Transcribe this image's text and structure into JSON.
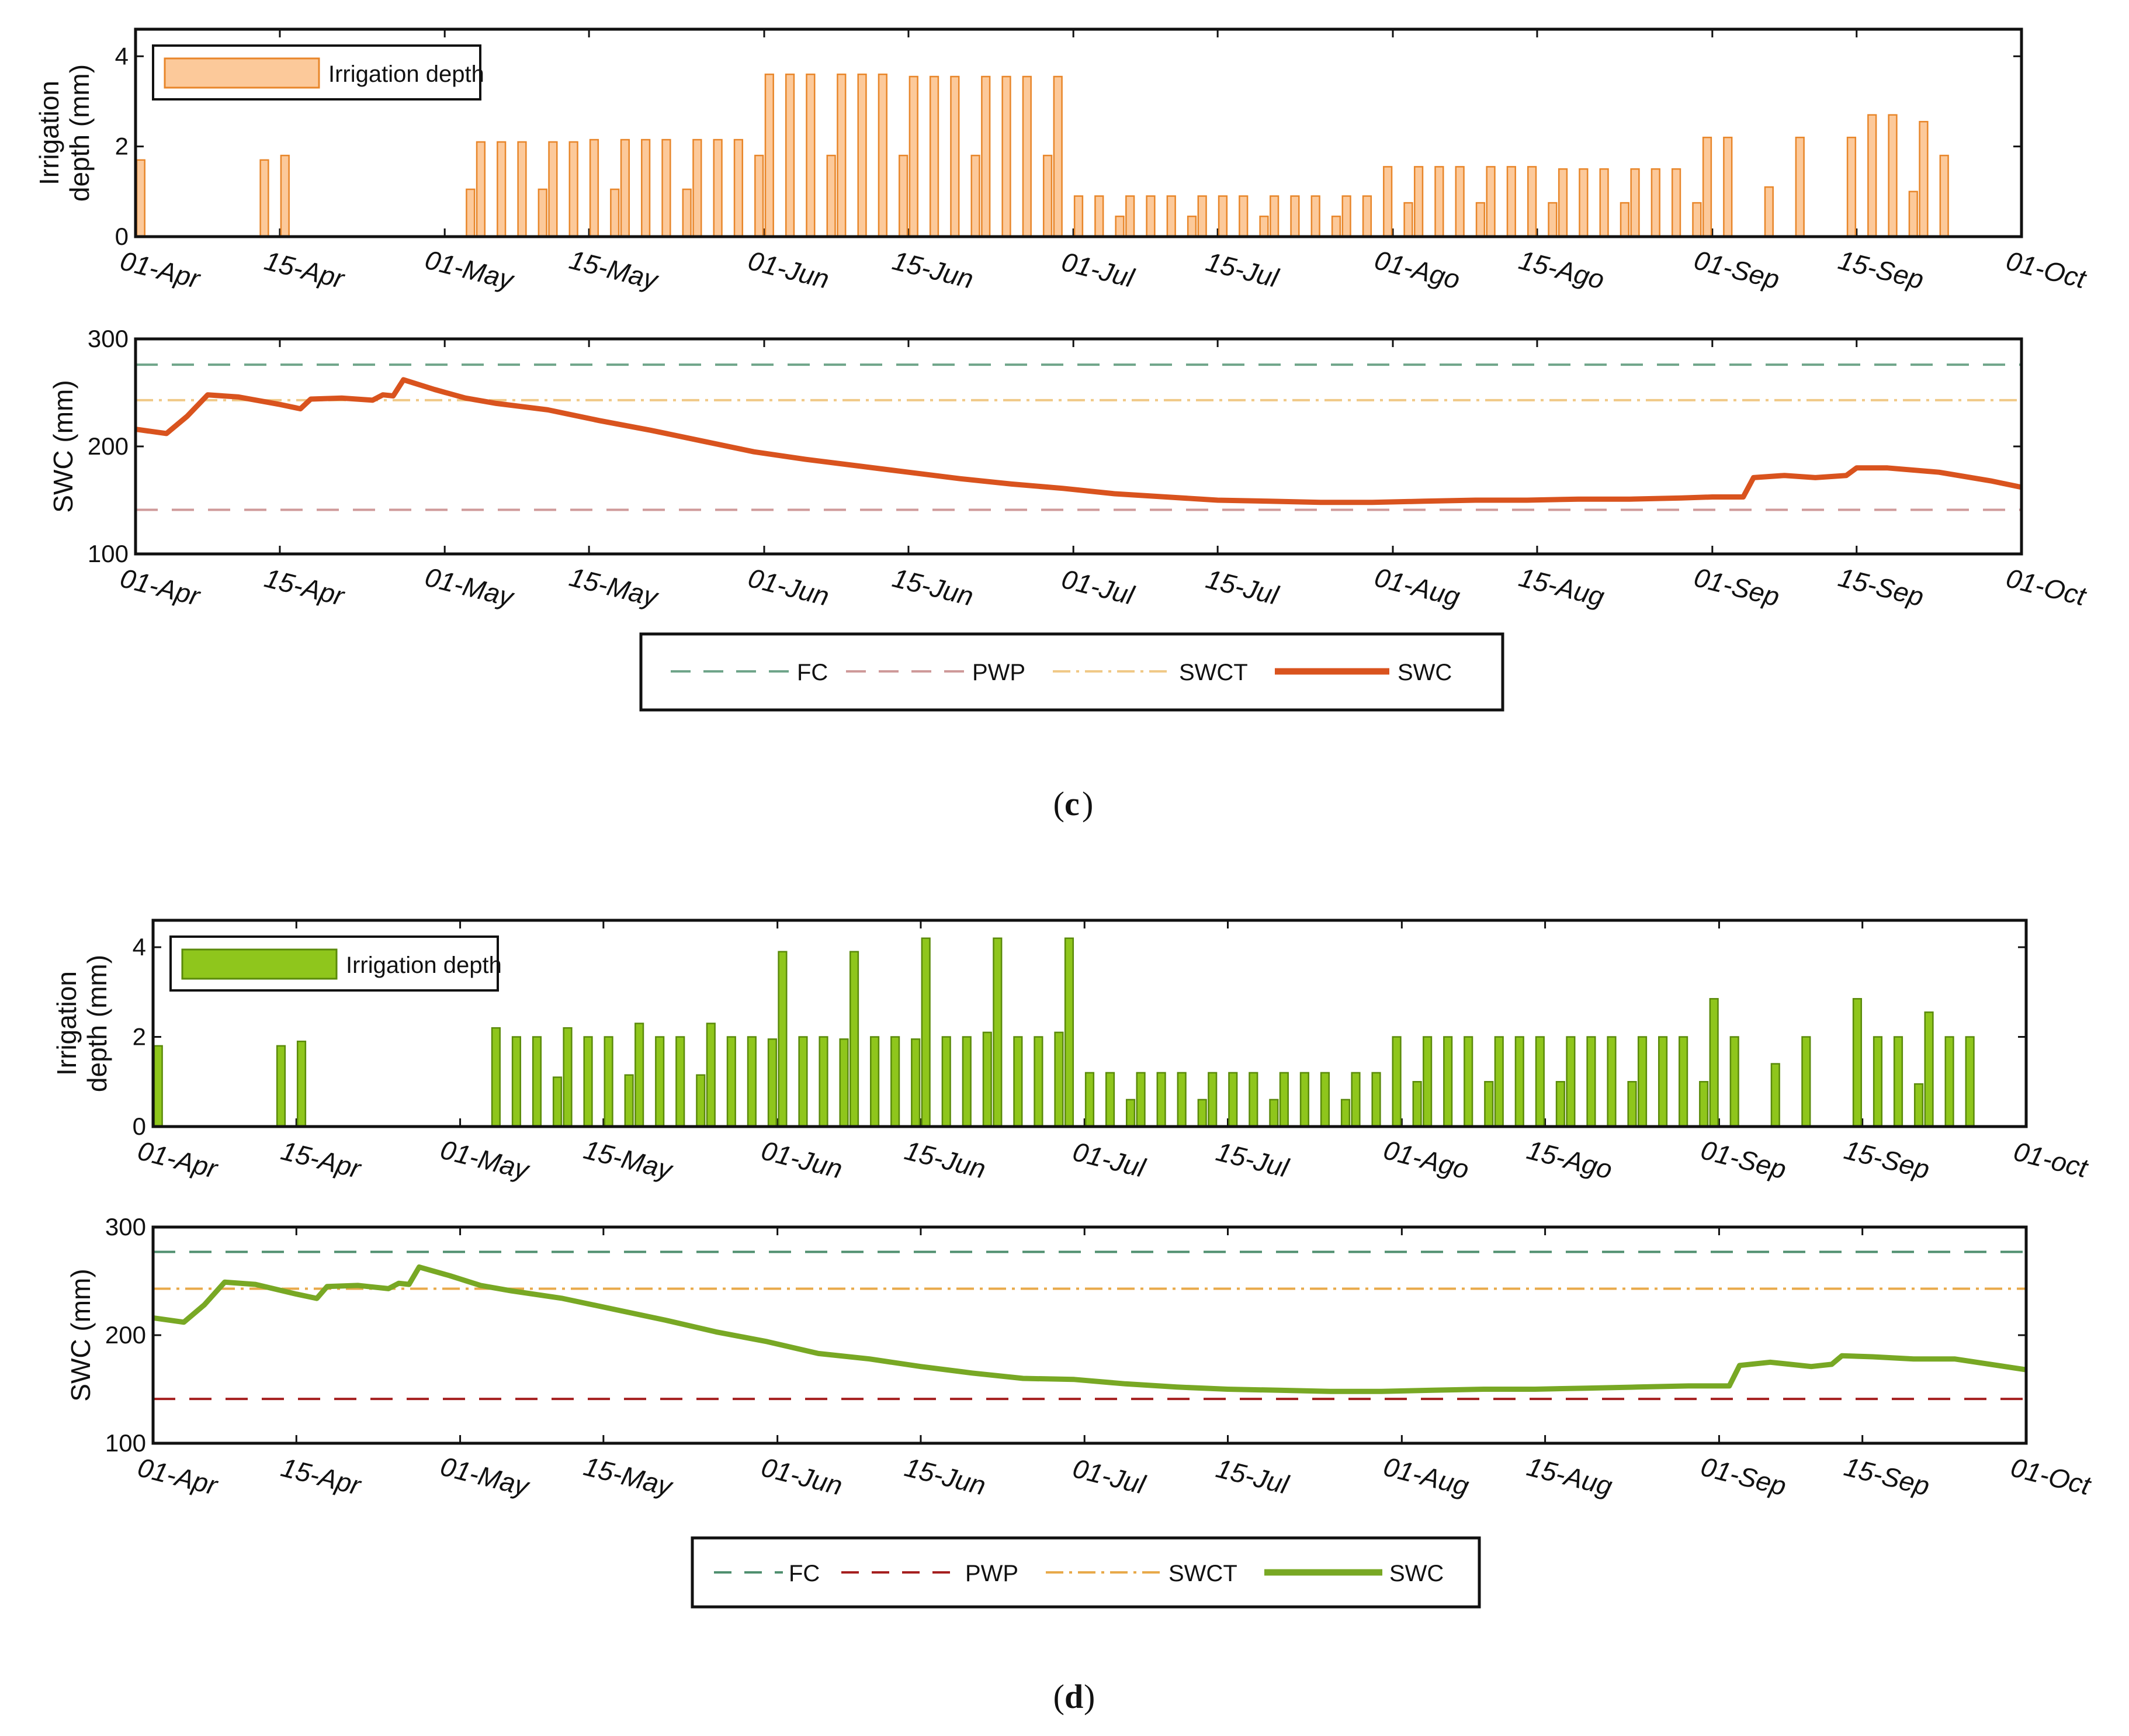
{
  "chart_data": [
    {
      "id": "c_irr",
      "type": "bar",
      "ylabel_lines": [
        "Irrigation",
        "depth (mm)"
      ],
      "yticks": [
        0,
        2,
        4
      ],
      "ylim": [
        0,
        4.6
      ],
      "xlim": [
        0,
        183
      ],
      "xtick_days": [
        0,
        14,
        30,
        44,
        61,
        75,
        91,
        105,
        122,
        136,
        153,
        167,
        183
      ],
      "xtick_labels": [
        "01-Apr",
        "15-Apr",
        "01-May",
        "15-May",
        "01-Jun",
        "15-Jun",
        "01-Jul",
        "15-Jul",
        "01-Ago",
        "15-Ago",
        "01-Sep",
        "15-Sep",
        "01-Oct"
      ],
      "legend": {
        "label": "Irrigation depth",
        "fill": "#fcc99a",
        "stroke": "#e8862a"
      },
      "bars": [
        [
          0.5,
          1.7
        ],
        [
          12.5,
          1.7
        ],
        [
          14.5,
          1.8
        ],
        [
          32.5,
          1.05
        ],
        [
          33.5,
          2.1
        ],
        [
          35.5,
          2.1
        ],
        [
          37.5,
          2.1
        ],
        [
          39.5,
          1.05
        ],
        [
          40.5,
          2.1
        ],
        [
          42.5,
          2.1
        ],
        [
          44.5,
          2.15
        ],
        [
          46.5,
          1.05
        ],
        [
          47.5,
          2.15
        ],
        [
          49.5,
          2.15
        ],
        [
          51.5,
          2.15
        ],
        [
          53.5,
          1.05
        ],
        [
          54.5,
          2.15
        ],
        [
          56.5,
          2.15
        ],
        [
          58.5,
          2.15
        ],
        [
          60.5,
          1.8
        ],
        [
          61.5,
          3.6
        ],
        [
          63.5,
          3.6
        ],
        [
          65.5,
          3.6
        ],
        [
          67.5,
          1.8
        ],
        [
          68.5,
          3.6
        ],
        [
          70.5,
          3.6
        ],
        [
          72.5,
          3.6
        ],
        [
          74.5,
          1.8
        ],
        [
          75.5,
          3.55
        ],
        [
          77.5,
          3.55
        ],
        [
          79.5,
          3.55
        ],
        [
          81.5,
          1.8
        ],
        [
          82.5,
          3.55
        ],
        [
          84.5,
          3.55
        ],
        [
          86.5,
          3.55
        ],
        [
          88.5,
          1.8
        ],
        [
          89.5,
          3.55
        ],
        [
          91.5,
          0.9
        ],
        [
          93.5,
          0.9
        ],
        [
          95.5,
          0.45
        ],
        [
          96.5,
          0.9
        ],
        [
          98.5,
          0.9
        ],
        [
          100.5,
          0.9
        ],
        [
          102.5,
          0.45
        ],
        [
          103.5,
          0.9
        ],
        [
          105.5,
          0.9
        ],
        [
          107.5,
          0.9
        ],
        [
          109.5,
          0.45
        ],
        [
          110.5,
          0.9
        ],
        [
          112.5,
          0.9
        ],
        [
          114.5,
          0.9
        ],
        [
          116.5,
          0.45
        ],
        [
          117.5,
          0.9
        ],
        [
          119.5,
          0.9
        ],
        [
          121.5,
          1.55
        ],
        [
          123.5,
          0.75
        ],
        [
          124.5,
          1.55
        ],
        [
          126.5,
          1.55
        ],
        [
          128.5,
          1.55
        ],
        [
          130.5,
          0.75
        ],
        [
          131.5,
          1.55
        ],
        [
          133.5,
          1.55
        ],
        [
          135.5,
          1.55
        ],
        [
          137.5,
          0.75
        ],
        [
          138.5,
          1.5
        ],
        [
          140.5,
          1.5
        ],
        [
          142.5,
          1.5
        ],
        [
          144.5,
          0.75
        ],
        [
          145.5,
          1.5
        ],
        [
          147.5,
          1.5
        ],
        [
          149.5,
          1.5
        ],
        [
          151.5,
          0.75
        ],
        [
          152.5,
          2.2
        ],
        [
          154.5,
          2.2
        ],
        [
          158.5,
          1.1
        ],
        [
          161.5,
          2.2
        ],
        [
          166.5,
          2.2
        ],
        [
          168.5,
          2.7
        ],
        [
          170.5,
          2.7
        ],
        [
          172.5,
          1.0
        ],
        [
          173.5,
          2.55
        ],
        [
          175.5,
          1.8
        ]
      ]
    },
    {
      "id": "c_swc",
      "type": "line",
      "ylabel": "SWC (mm)",
      "yticks": [
        100,
        200,
        300
      ],
      "ylim": [
        100,
        300
      ],
      "xlim": [
        0,
        183
      ],
      "xtick_days": [
        0,
        14,
        30,
        44,
        61,
        75,
        91,
        105,
        122,
        136,
        153,
        167,
        183
      ],
      "xtick_labels": [
        "01-Apr",
        "15-Apr",
        "01-May",
        "15-May",
        "01-Jun",
        "15-Jun",
        "01-Jul",
        "15-Jul",
        "01-Aug",
        "15-Aug",
        "01-Sep",
        "15-Sep",
        "01-Oct"
      ],
      "fc": 276,
      "pwp": 141,
      "swct": 243,
      "fc_color": "#6fa58a",
      "pwp_color": "#cf9a9a",
      "swct_color": "#f0c987",
      "swc_color": "#d9531e",
      "swc_points": [
        [
          0,
          216
        ],
        [
          3,
          212
        ],
        [
          5,
          228
        ],
        [
          7,
          248
        ],
        [
          10,
          246
        ],
        [
          14,
          239
        ],
        [
          16,
          235
        ],
        [
          17,
          244
        ],
        [
          20,
          245
        ],
        [
          23,
          243
        ],
        [
          24,
          248
        ],
        [
          25,
          247
        ],
        [
          26,
          262
        ],
        [
          29,
          253
        ],
        [
          32,
          245
        ],
        [
          35,
          240
        ],
        [
          40,
          234
        ],
        [
          45,
          224
        ],
        [
          50,
          215
        ],
        [
          55,
          205
        ],
        [
          60,
          195
        ],
        [
          65,
          188
        ],
        [
          70,
          182
        ],
        [
          75,
          176
        ],
        [
          80,
          170
        ],
        [
          85,
          165
        ],
        [
          90,
          161
        ],
        [
          95,
          156
        ],
        [
          100,
          153
        ],
        [
          105,
          150
        ],
        [
          110,
          149
        ],
        [
          115,
          148
        ],
        [
          120,
          148
        ],
        [
          125,
          149
        ],
        [
          130,
          150
        ],
        [
          135,
          150
        ],
        [
          140,
          151
        ],
        [
          145,
          151
        ],
        [
          150,
          152
        ],
        [
          153,
          153
        ],
        [
          156,
          153
        ],
        [
          157,
          171
        ],
        [
          160,
          173
        ],
        [
          163,
          171
        ],
        [
          166,
          173
        ],
        [
          167,
          180
        ],
        [
          170,
          180
        ],
        [
          175,
          176
        ],
        [
          180,
          168
        ],
        [
          183,
          162
        ]
      ],
      "legend": [
        "FC",
        "PWP",
        "SWCT",
        "SWC"
      ]
    },
    {
      "id": "d_irr",
      "type": "bar",
      "ylabel_lines": [
        "Irrigation",
        "depth (mm)"
      ],
      "yticks": [
        0,
        2,
        4
      ],
      "ylim": [
        0,
        4.6
      ],
      "xlim": [
        0,
        183
      ],
      "xtick_days": [
        0,
        14,
        30,
        44,
        61,
        75,
        91,
        105,
        122,
        136,
        153,
        167,
        183
      ],
      "xtick_labels": [
        "01-Apr",
        "15-Apr",
        "01-May",
        "15-May",
        "01-Jun",
        "15-Jun",
        "01-Jul",
        "15-Jul",
        "01-Ago",
        "15-Ago",
        "01-Sep",
        "15-Sep",
        "01-oct"
      ],
      "legend": {
        "label": "Irrigation depth",
        "fill": "#8fc61c",
        "stroke": "#5a8a0a"
      },
      "bars": [
        [
          0.5,
          1.8
        ],
        [
          12.5,
          1.8
        ],
        [
          14.5,
          1.9
        ],
        [
          33.5,
          2.2
        ],
        [
          35.5,
          2.0
        ],
        [
          37.5,
          2.0
        ],
        [
          39.5,
          1.1
        ],
        [
          40.5,
          2.2
        ],
        [
          42.5,
          2.0
        ],
        [
          44.5,
          2.0
        ],
        [
          46.5,
          1.15
        ],
        [
          47.5,
          2.3
        ],
        [
          49.5,
          2.0
        ],
        [
          51.5,
          2.0
        ],
        [
          53.5,
          1.15
        ],
        [
          54.5,
          2.3
        ],
        [
          56.5,
          2.0
        ],
        [
          58.5,
          2.0
        ],
        [
          60.5,
          1.95
        ],
        [
          61.5,
          3.9
        ],
        [
          63.5,
          2.0
        ],
        [
          65.5,
          2.0
        ],
        [
          67.5,
          1.95
        ],
        [
          68.5,
          3.9
        ],
        [
          70.5,
          2.0
        ],
        [
          72.5,
          2.0
        ],
        [
          74.5,
          1.95
        ],
        [
          75.5,
          4.2
        ],
        [
          77.5,
          2.0
        ],
        [
          79.5,
          2.0
        ],
        [
          81.5,
          2.1
        ],
        [
          82.5,
          4.2
        ],
        [
          84.5,
          2.0
        ],
        [
          86.5,
          2.0
        ],
        [
          88.5,
          2.1
        ],
        [
          89.5,
          4.2
        ],
        [
          91.5,
          1.2
        ],
        [
          93.5,
          1.2
        ],
        [
          95.5,
          0.6
        ],
        [
          96.5,
          1.2
        ],
        [
          98.5,
          1.2
        ],
        [
          100.5,
          1.2
        ],
        [
          102.5,
          0.6
        ],
        [
          103.5,
          1.2
        ],
        [
          105.5,
          1.2
        ],
        [
          107.5,
          1.2
        ],
        [
          109.5,
          0.6
        ],
        [
          110.5,
          1.2
        ],
        [
          112.5,
          1.2
        ],
        [
          114.5,
          1.2
        ],
        [
          116.5,
          0.6
        ],
        [
          117.5,
          1.2
        ],
        [
          119.5,
          1.2
        ],
        [
          121.5,
          2.0
        ],
        [
          123.5,
          1.0
        ],
        [
          124.5,
          2.0
        ],
        [
          126.5,
          2.0
        ],
        [
          128.5,
          2.0
        ],
        [
          130.5,
          1.0
        ],
        [
          131.5,
          2.0
        ],
        [
          133.5,
          2.0
        ],
        [
          135.5,
          2.0
        ],
        [
          137.5,
          1.0
        ],
        [
          138.5,
          2.0
        ],
        [
          140.5,
          2.0
        ],
        [
          142.5,
          2.0
        ],
        [
          144.5,
          1.0
        ],
        [
          145.5,
          2.0
        ],
        [
          147.5,
          2.0
        ],
        [
          149.5,
          2.0
        ],
        [
          151.5,
          1.0
        ],
        [
          152.5,
          2.85
        ],
        [
          154.5,
          2.0
        ],
        [
          158.5,
          1.4
        ],
        [
          161.5,
          2.0
        ],
        [
          166.5,
          2.85
        ],
        [
          168.5,
          2.0
        ],
        [
          170.5,
          2.0
        ],
        [
          172.5,
          0.95
        ],
        [
          173.5,
          2.55
        ],
        [
          175.5,
          2.0
        ],
        [
          177.5,
          2.0
        ]
      ]
    },
    {
      "id": "d_swc",
      "type": "line",
      "ylabel": "SWC (mm)",
      "yticks": [
        100,
        200,
        300
      ],
      "ylim": [
        100,
        300
      ],
      "xlim": [
        0,
        183
      ],
      "xtick_days": [
        0,
        14,
        30,
        44,
        61,
        75,
        91,
        105,
        122,
        136,
        153,
        167,
        183
      ],
      "xtick_labels": [
        "01-Apr",
        "15-Apr",
        "01-May",
        "15-May",
        "01-Jun",
        "15-Jun",
        "01-Jul",
        "15-Jul",
        "01-Aug",
        "15-Aug",
        "01-Sep",
        "15-Sep",
        "01-Oct"
      ],
      "fc": 277,
      "pwp": 141,
      "swct": 243,
      "fc_color": "#4f8f6f",
      "pwp_color": "#a51f1f",
      "swct_color": "#e8a94a",
      "swc_color": "#78a824",
      "swc_points": [
        [
          0,
          216
        ],
        [
          3,
          212
        ],
        [
          5,
          228
        ],
        [
          7,
          249
        ],
        [
          10,
          247
        ],
        [
          14,
          238
        ],
        [
          16,
          234
        ],
        [
          17,
          245
        ],
        [
          20,
          246
        ],
        [
          23,
          243
        ],
        [
          24,
          248
        ],
        [
          25,
          247
        ],
        [
          26,
          263
        ],
        [
          29,
          255
        ],
        [
          32,
          246
        ],
        [
          35,
          241
        ],
        [
          40,
          234
        ],
        [
          45,
          224
        ],
        [
          50,
          214
        ],
        [
          55,
          203
        ],
        [
          60,
          194
        ],
        [
          65,
          183
        ],
        [
          70,
          178
        ],
        [
          75,
          171
        ],
        [
          80,
          165
        ],
        [
          85,
          160
        ],
        [
          90,
          159
        ],
        [
          95,
          155
        ],
        [
          100,
          152
        ],
        [
          105,
          150
        ],
        [
          110,
          149
        ],
        [
          115,
          148
        ],
        [
          120,
          148
        ],
        [
          125,
          149
        ],
        [
          130,
          150
        ],
        [
          135,
          150
        ],
        [
          140,
          151
        ],
        [
          145,
          152
        ],
        [
          150,
          153
        ],
        [
          154,
          153
        ],
        [
          155,
          172
        ],
        [
          158,
          175
        ],
        [
          162,
          171
        ],
        [
          164,
          173
        ],
        [
          165,
          181
        ],
        [
          168,
          180
        ],
        [
          172,
          178
        ],
        [
          176,
          178
        ],
        [
          183,
          168
        ]
      ],
      "legend": [
        "FC",
        "PWP",
        "SWCT",
        "SWC"
      ]
    }
  ],
  "captions": {
    "c": "c",
    "d": "d"
  },
  "legend_c": {
    "fc": "FC",
    "pwp": "PWP",
    "swct": "SWCT",
    "swc": "SWC"
  },
  "legend_d": {
    "fc": "FC",
    "pwp": "PWP",
    "swct": "SWCT",
    "swc": "SWC"
  }
}
